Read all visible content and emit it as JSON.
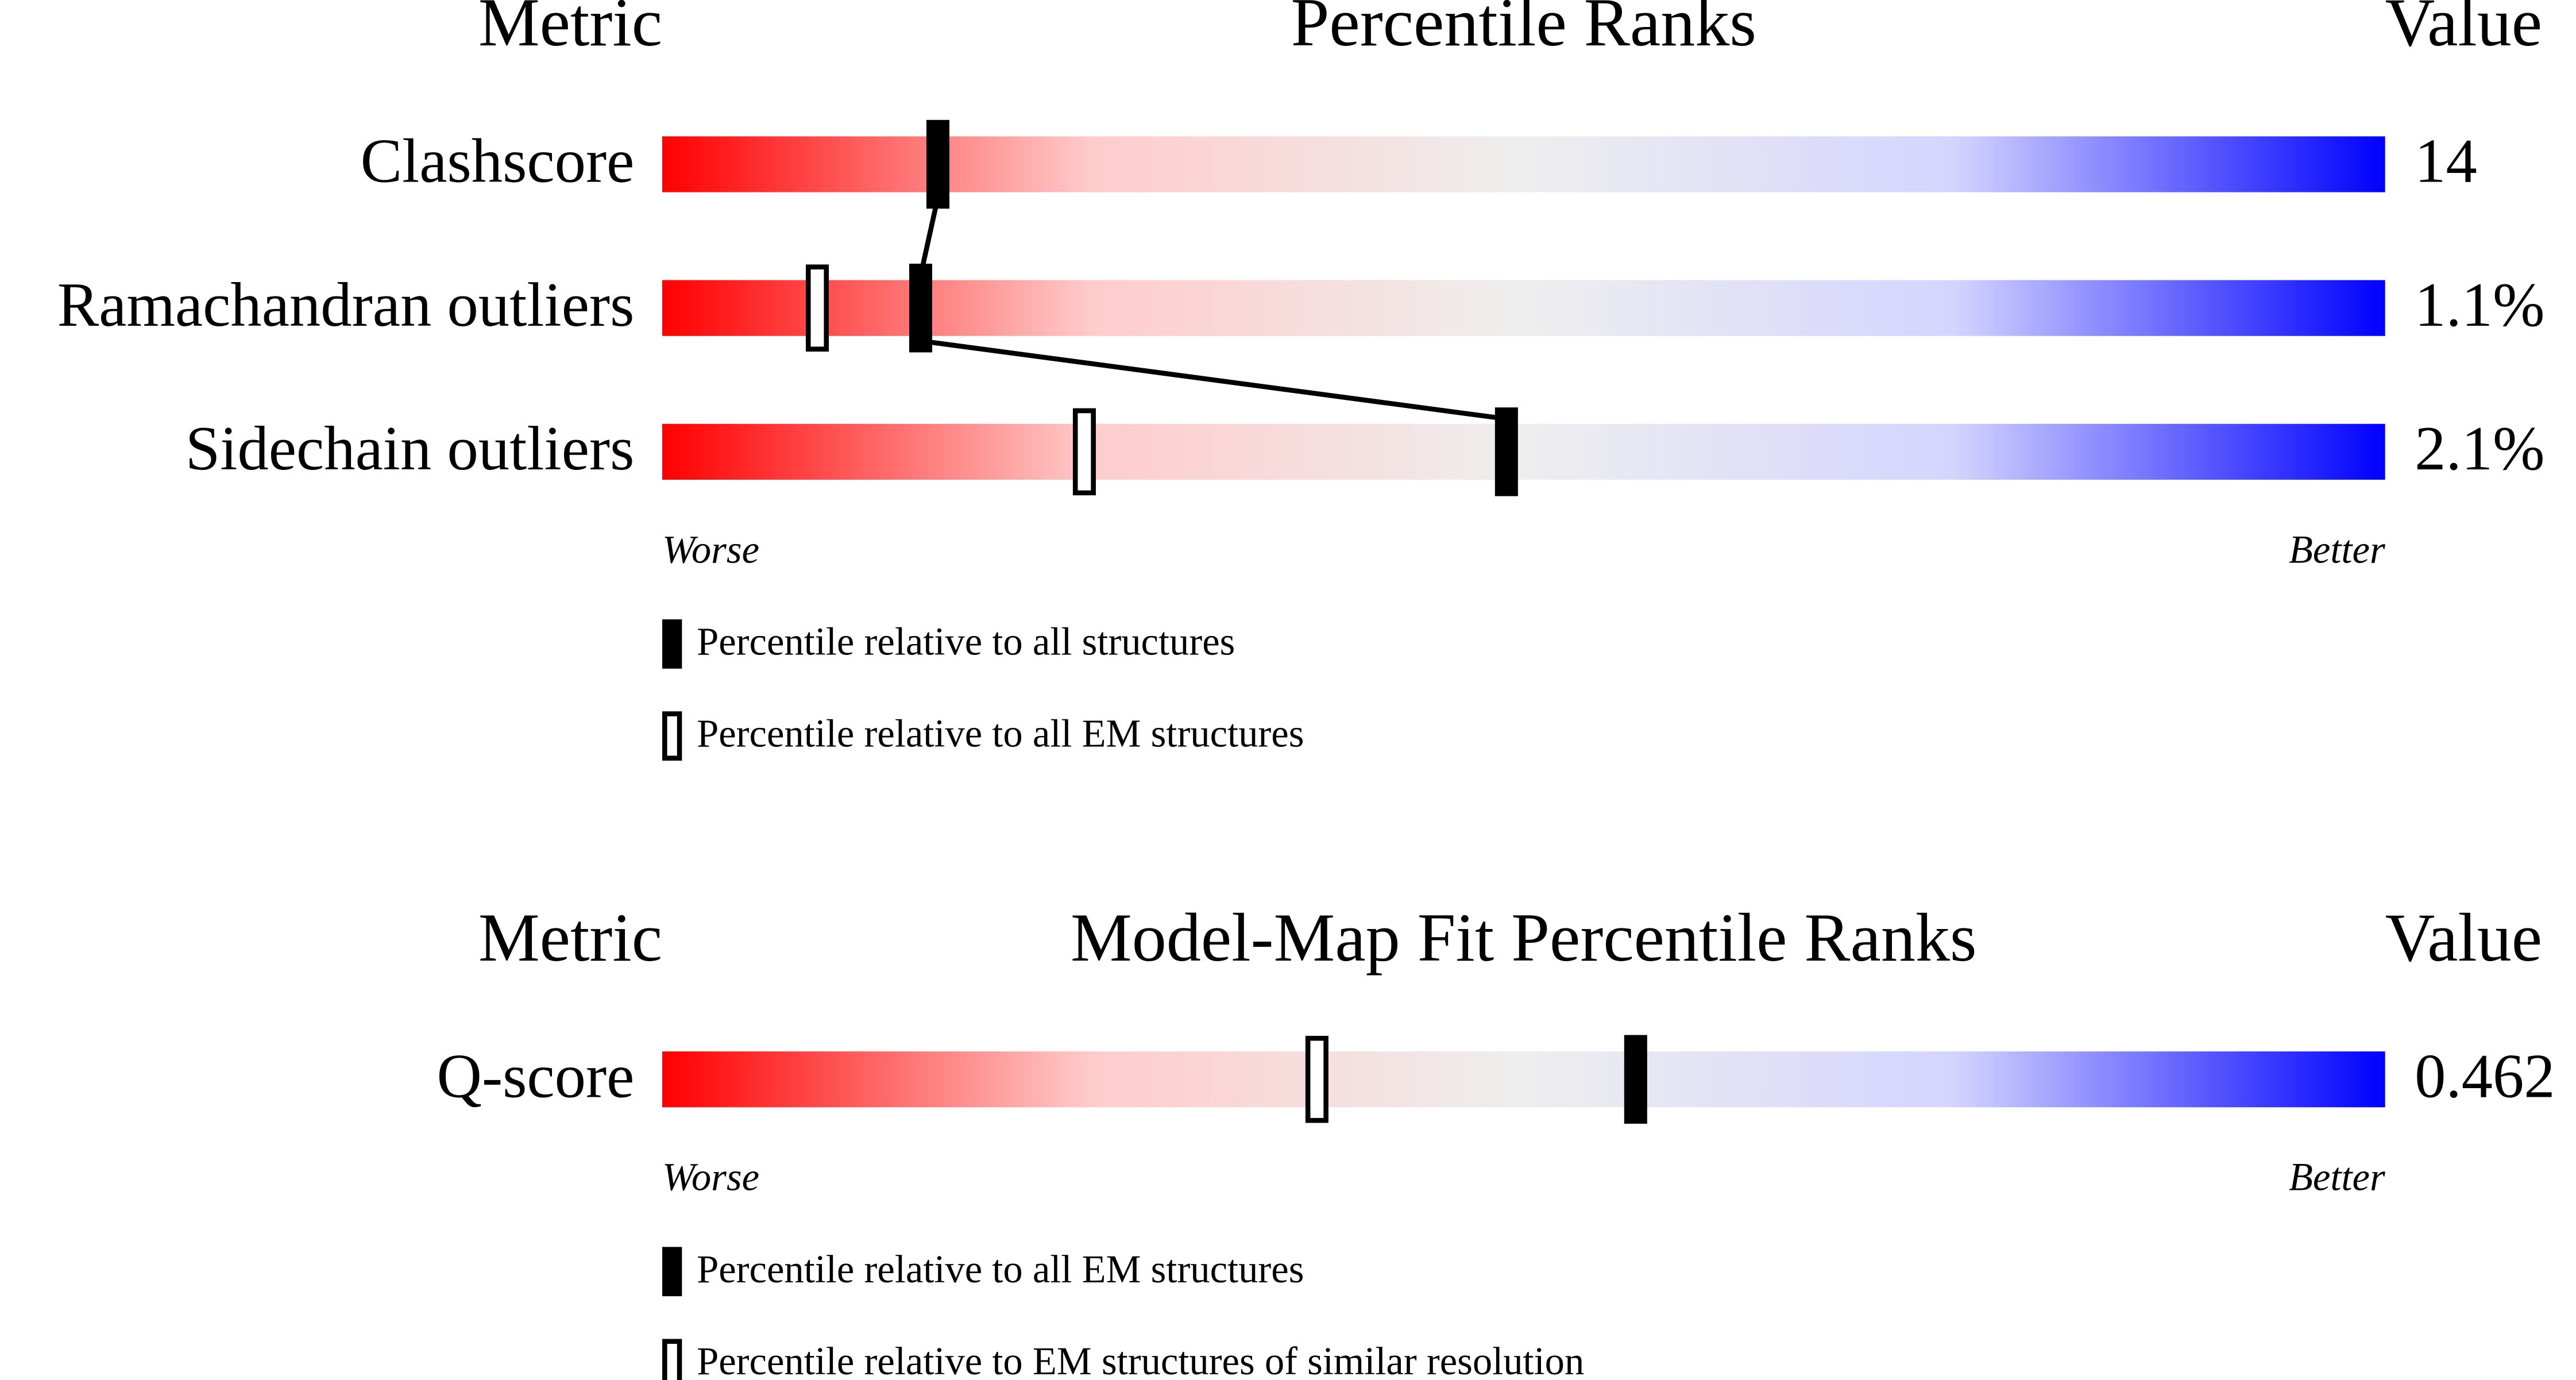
{
  "panels": [
    {
      "headers": {
        "metric": "Metric",
        "title": "Percentile Ranks",
        "value": "Value"
      },
      "xlim": [
        0,
        100
      ],
      "rows": [
        {
          "metric": "Clashscore",
          "value": "14",
          "percentile_filled": 16
        },
        {
          "metric": "Ramachandran outliers",
          "value": "1.1%",
          "percentile_filled": 15,
          "percentile_open": 9
        },
        {
          "metric": "Sidechain outliers",
          "value": "2.1%",
          "percentile_filled": 49,
          "percentile_open": 24.5
        }
      ],
      "worse": "Worse",
      "better": "Better",
      "legend": [
        {
          "label": "Percentile relative to all structures",
          "style": "filled"
        },
        {
          "label": "Percentile relative to all EM structures",
          "style": "open"
        }
      ]
    },
    {
      "headers": {
        "metric": "Metric",
        "title": "Model-Map Fit Percentile Ranks",
        "value": "Value"
      },
      "xlim": [
        0,
        100
      ],
      "rows": [
        {
          "metric": "Q-score",
          "value": "0.462",
          "percentile_filled": 56.5,
          "percentile_open": 38
        }
      ],
      "worse": "Worse",
      "better": "Better",
      "legend": [
        {
          "label": "Percentile relative to all EM structures",
          "style": "filled"
        },
        {
          "label": "Percentile relative to EM structures of similar resolution",
          "style": "open"
        }
      ]
    }
  ]
}
